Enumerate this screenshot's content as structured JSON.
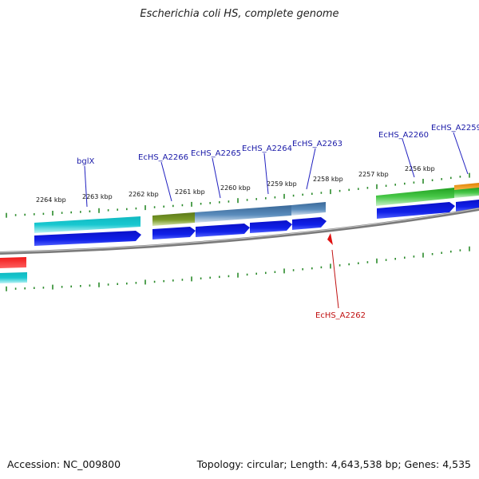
{
  "title": "Escherichia coli HS, complete genome",
  "footer": {
    "accession": "Accession: NC_009800",
    "summary": "Topology: circular; Length: 4,643,538 bp; Genes: 4,535"
  },
  "ruler": {
    "labels": [
      "2264 kbp",
      "2263 kbp",
      "2262 kbp",
      "2261 kbp",
      "2260 kbp",
      "2259 kbp",
      "2258 kbp",
      "2257 kbp",
      "2256 kbp"
    ]
  },
  "genes_above": [
    "bglX",
    "EcHS_A2266",
    "EcHS_A2265",
    "EcHS_A2264",
    "EcHS_A2263",
    "EcHS_A2260",
    "EcHS_A2259"
  ],
  "genes_below": [
    "EcHS_A2262"
  ],
  "colors": {
    "cds_blue": "#0a14d8",
    "label_above": "#1a1aa8",
    "label_below": "#c01010",
    "backbone": "#808080",
    "ticks": "#2a8a2a",
    "cyan_feature": "#18c0c8",
    "olive_feature": "#6a8a20",
    "steel_feature": "#4a7aa8",
    "green_feature": "#30b030",
    "orange_feature": "#f09010",
    "red_feature": "#e01010"
  }
}
